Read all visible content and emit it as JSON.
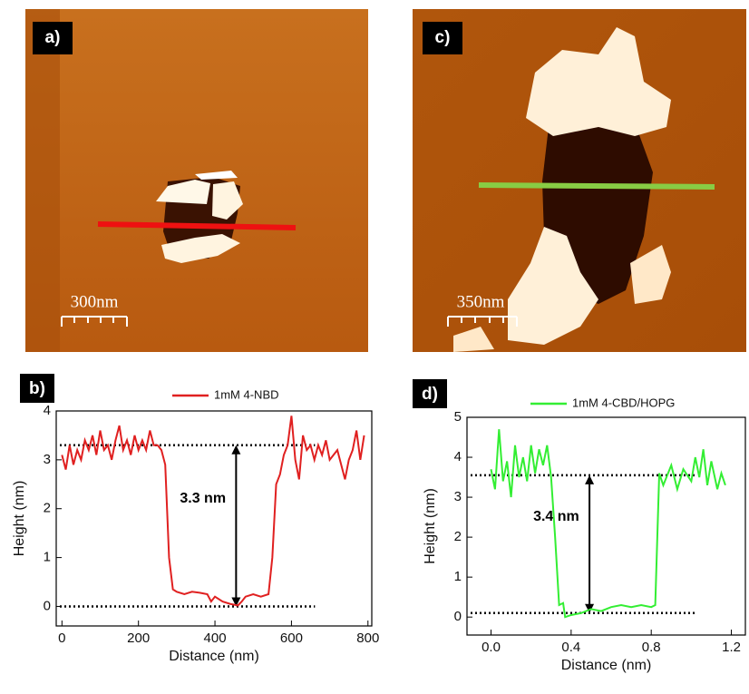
{
  "images": [
    {
      "label": "a)",
      "scale_bar": "300nm"
    },
    {
      "label": "c)",
      "scale_bar": "350nm"
    }
  ],
  "chart_data": [
    {
      "type": "line",
      "panel_label": "b)",
      "x_label": "Distance (nm)",
      "y_label": "Height (nm)",
      "annotation": "3.3 nm",
      "xlim": [
        -15,
        810
      ],
      "ylim": [
        -0.4,
        4
      ],
      "xticks": [
        0,
        200,
        400,
        600,
        800
      ],
      "yticks": [
        0,
        1,
        2,
        3,
        4
      ],
      "reference_lines": [
        3.3,
        0
      ],
      "series": [
        {
          "name": "1mM 4-NBD",
          "color": "#e02020",
          "x": [
            0,
            10,
            20,
            30,
            40,
            50,
            60,
            70,
            80,
            90,
            100,
            110,
            120,
            130,
            140,
            150,
            160,
            170,
            180,
            190,
            200,
            210,
            220,
            230,
            240,
            250,
            260,
            270,
            280,
            290,
            300,
            320,
            340,
            360,
            380,
            390,
            400,
            420,
            440,
            460,
            470,
            480,
            500,
            520,
            540,
            550,
            560,
            570,
            580,
            590,
            600,
            610,
            620,
            630,
            640,
            650,
            660,
            670,
            680,
            690,
            700,
            720,
            740,
            750,
            760,
            770,
            780,
            790
          ],
          "values": [
            3.1,
            2.8,
            3.3,
            2.9,
            3.2,
            3.0,
            3.4,
            3.2,
            3.5,
            3.1,
            3.6,
            3.2,
            3.3,
            3.0,
            3.4,
            3.7,
            3.2,
            3.4,
            3.1,
            3.5,
            3.2,
            3.4,
            3.2,
            3.6,
            3.3,
            3.3,
            3.2,
            2.9,
            1.0,
            0.35,
            0.3,
            0.25,
            0.3,
            0.28,
            0.25,
            0.1,
            0.2,
            0.1,
            0.05,
            0.02,
            0.1,
            0.2,
            0.25,
            0.2,
            0.25,
            1.0,
            2.5,
            2.7,
            3.1,
            3.3,
            3.9,
            3.0,
            2.6,
            3.5,
            3.2,
            3.3,
            3.0,
            3.3,
            3.1,
            3.4,
            3.0,
            3.2,
            2.6,
            3.0,
            3.2,
            3.6,
            3.0,
            3.5
          ]
        }
      ]
    },
    {
      "type": "line",
      "panel_label": "d)",
      "x_label": "Distance (nm)",
      "y_label": "Height (nm)",
      "annotation": "3.4 nm",
      "xlim": [
        -0.12,
        1.27
      ],
      "ylim": [
        -0.45,
        5
      ],
      "xticks": [
        {
          "value": 0,
          "label": "0.0"
        },
        0.4,
        0.8,
        1.2
      ],
      "yticks": [
        0,
        1,
        2,
        3,
        4,
        5
      ],
      "reference_lines": [
        3.55,
        0.1
      ],
      "series": [
        {
          "name": "1mM 4-CBD/HOPG",
          "color": "#33ee33",
          "x": [
            0,
            0.02,
            0.04,
            0.06,
            0.08,
            0.1,
            0.12,
            0.14,
            0.16,
            0.18,
            0.2,
            0.22,
            0.24,
            0.26,
            0.28,
            0.3,
            0.32,
            0.34,
            0.36,
            0.37,
            0.4,
            0.45,
            0.5,
            0.55,
            0.6,
            0.65,
            0.7,
            0.75,
            0.8,
            0.82,
            0.84,
            0.86,
            0.9,
            0.93,
            0.96,
            1.0,
            1.02,
            1.04,
            1.06,
            1.08,
            1.1,
            1.13,
            1.15,
            1.17
          ],
          "values": [
            3.7,
            3.2,
            4.7,
            3.4,
            3.9,
            3.0,
            4.3,
            3.5,
            4.0,
            3.4,
            4.3,
            3.6,
            4.2,
            3.8,
            4.3,
            3.5,
            2.0,
            0.3,
            0.35,
            0.0,
            0.05,
            0.1,
            0.2,
            0.15,
            0.25,
            0.3,
            0.25,
            0.3,
            0.25,
            0.3,
            3.6,
            3.3,
            3.8,
            3.2,
            3.7,
            3.4,
            4.0,
            3.5,
            4.2,
            3.3,
            3.9,
            3.2,
            3.6,
            3.3
          ]
        }
      ]
    }
  ]
}
